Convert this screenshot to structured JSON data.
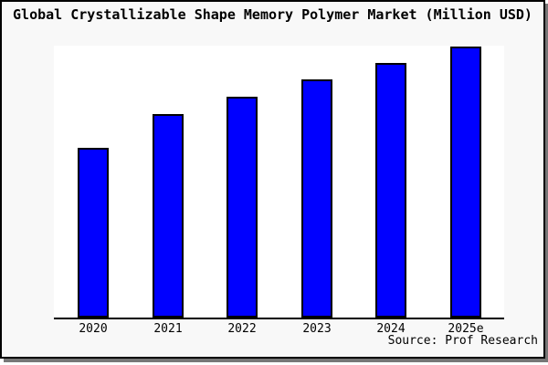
{
  "title": "Global Crystallizable Shape Memory Polymer Market (Million USD)",
  "source_credit": "Source: Prof Research",
  "colors": {
    "bar_fill": "#0000FF",
    "bar_border": "#000000",
    "axis": "#000000",
    "card_bg": "#F8F8F8",
    "plot_bg": "#FFFFFF",
    "shadow": "#777777"
  },
  "chart_data": {
    "type": "bar",
    "title": "Global Crystallizable Shape Memory Polymer Market (Million USD)",
    "categories": [
      "2020",
      "2021",
      "2022",
      "2023",
      "2024",
      "2025e"
    ],
    "values": [
      62.6,
      75.1,
      81.5,
      87.9,
      93.9,
      100.0
    ],
    "values_note": "percent of tallest (2025e) bar height; y-axis has no tick labels",
    "xlabel": "",
    "ylabel": "",
    "ylim": [
      0,
      100
    ],
    "y_axis_labeled": false,
    "gridlines": false,
    "legend": false,
    "annotations": [
      "Source: Prof Research"
    ]
  }
}
